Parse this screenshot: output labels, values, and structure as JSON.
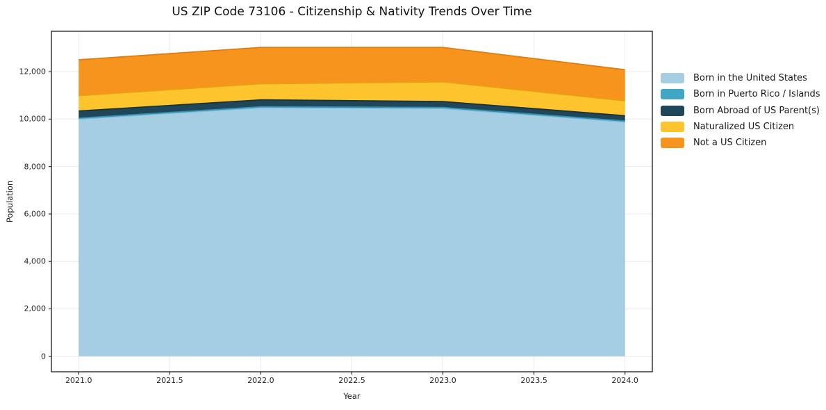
{
  "chart_data": {
    "type": "area",
    "stacked": true,
    "title": "US ZIP Code 73106 - Citizenship & Nativity Trends Over Time",
    "xlabel": "Year",
    "ylabel": "Population",
    "grid": true,
    "legend_position": "right-outside",
    "x": [
      2021,
      2022,
      2023,
      2024
    ],
    "series": [
      {
        "name": "Born in the United States",
        "color": "#a6cee3",
        "edge": "#7fb8d8",
        "values": [
          10000,
          10480,
          10450,
          9880
        ]
      },
      {
        "name": "Born in Puerto Rico / Islands",
        "color": "#41a6c4",
        "edge": "#2f8fae",
        "values": [
          40,
          40,
          40,
          40
        ]
      },
      {
        "name": "Born Abroad of US Parent(s)",
        "color": "#20465a",
        "edge": "#16323f",
        "values": [
          300,
          290,
          250,
          220
        ]
      },
      {
        "name": "Naturalized US Citizen",
        "color": "#fdc42e",
        "edge": "#e8a112",
        "values": [
          650,
          680,
          830,
          630
        ]
      },
      {
        "name": "Not a US Citizen",
        "color": "#f7941e",
        "edge": "#e07d0e",
        "values": [
          1510,
          1530,
          1450,
          1310
        ]
      }
    ],
    "totals": [
      12500,
      13020,
      13020,
      12080
    ],
    "x_tick_values": [
      2021.0,
      2021.5,
      2022.0,
      2022.5,
      2023.0,
      2023.5,
      2024.0
    ],
    "x_tick_labels": [
      "2021.0",
      "2021.5",
      "2022.0",
      "2022.5",
      "2023.0",
      "2023.5",
      "2024.0"
    ],
    "y_tick_values": [
      0,
      2000,
      4000,
      6000,
      8000,
      10000,
      12000
    ],
    "y_tick_labels": [
      "0",
      "2,000",
      "4,000",
      "6,000",
      "8,000",
      "10,000",
      "12,000"
    ],
    "xlim": [
      2020.85,
      2024.15
    ],
    "ylim": [
      -652,
      13702
    ]
  }
}
